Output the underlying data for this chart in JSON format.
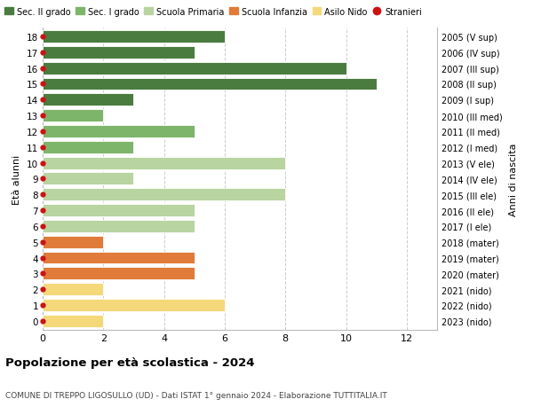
{
  "ages": [
    18,
    17,
    16,
    15,
    14,
    13,
    12,
    11,
    10,
    9,
    8,
    7,
    6,
    5,
    4,
    3,
    2,
    1,
    0
  ],
  "right_labels": [
    "2005 (V sup)",
    "2006 (IV sup)",
    "2007 (III sup)",
    "2008 (II sup)",
    "2009 (I sup)",
    "2010 (III med)",
    "2011 (II med)",
    "2012 (I med)",
    "2013 (V ele)",
    "2014 (IV ele)",
    "2015 (III ele)",
    "2016 (II ele)",
    "2017 (I ele)",
    "2018 (mater)",
    "2019 (mater)",
    "2020 (mater)",
    "2021 (nido)",
    "2022 (nido)",
    "2023 (nido)"
  ],
  "values": [
    6,
    5,
    10,
    11,
    3,
    2,
    5,
    3,
    8,
    3,
    8,
    5,
    5,
    2,
    5,
    5,
    2,
    6,
    2
  ],
  "bar_colors": [
    "#4a7c3f",
    "#4a7c3f",
    "#4a7c3f",
    "#4a7c3f",
    "#4a7c3f",
    "#7db56a",
    "#7db56a",
    "#7db56a",
    "#b8d4a0",
    "#b8d4a0",
    "#b8d4a0",
    "#b8d4a0",
    "#b8d4a0",
    "#e07b3a",
    "#e07b3a",
    "#e07b3a",
    "#f5d87a",
    "#f5d87a",
    "#f5d87a"
  ],
  "legend_labels": [
    "Sec. II grado",
    "Sec. I grado",
    "Scuola Primaria",
    "Scuola Infanzia",
    "Asilo Nido",
    "Stranieri"
  ],
  "legend_colors": [
    "#4a7c3f",
    "#7db56a",
    "#b8d4a0",
    "#e07b3a",
    "#f5d87a",
    "#cc1111"
  ],
  "title": "Popolazione per età scolastica - 2024",
  "subtitle": "COMUNE DI TREPPO LIGOSULLO (UD) - Dati ISTAT 1° gennaio 2024 - Elaborazione TUTTITALIA.IT",
  "ylabel_left": "Età alunni",
  "ylabel_right": "Anni di nascita",
  "xlim": [
    0,
    13
  ],
  "xticks": [
    0,
    2,
    4,
    6,
    8,
    10,
    12
  ],
  "background_color": "#ffffff",
  "grid_color": "#cccccc",
  "bar_height": 0.78
}
